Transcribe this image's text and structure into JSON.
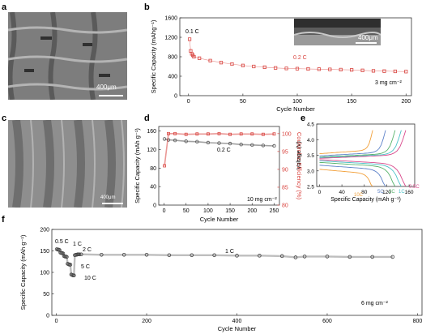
{
  "panel_letters": [
    "a",
    "b",
    "c",
    "d",
    "e",
    "f"
  ],
  "scale_bars": {
    "a": "400μm",
    "b_inset": "400μm",
    "c": "400μm"
  },
  "chart_data": [
    {
      "id": "b",
      "type": "scatter",
      "xlabel": "Cycle Number",
      "ylabel": "Specific Capacity (mAhg⁻¹)",
      "xlim": [
        -8,
        205
      ],
      "ylim": [
        0,
        1600
      ],
      "xticks": [
        0,
        50,
        100,
        150,
        200
      ],
      "yticks": [
        0,
        400,
        800,
        1200,
        1600
      ],
      "annotations": {
        "rate_start": "0.1 C",
        "rate_main": "0.2 C",
        "loading": "3 mg cm⁻²"
      },
      "series": [
        {
          "color": "#d9443f",
          "marker": "open-square",
          "x": [
            1,
            2,
            3,
            4,
            5,
            10,
            20,
            30,
            40,
            50,
            60,
            70,
            80,
            90,
            100,
            110,
            120,
            130,
            140,
            150,
            160,
            170,
            180,
            190,
            200
          ],
          "y": [
            1160,
            920,
            860,
            830,
            800,
            770,
            720,
            680,
            650,
            620,
            600,
            585,
            570,
            560,
            555,
            550,
            545,
            540,
            535,
            530,
            520,
            510,
            505,
            500,
            495
          ]
        }
      ]
    },
    {
      "id": "d",
      "type": "scatter",
      "xlabel": "Cycle Number",
      "ylabel": "Specific Capacity (mAh g⁻¹)",
      "ylabel_right": "Coulombic Efficiency (%)",
      "xlim": [
        -12,
        262
      ],
      "ylim": [
        0,
        170
      ],
      "ylim_right": [
        80,
        102
      ],
      "xticks": [
        0,
        50,
        100,
        150,
        200,
        250
      ],
      "yticks": [
        0,
        40,
        80,
        120,
        160
      ],
      "yticks_right": [
        80,
        85,
        90,
        95,
        100
      ],
      "annotations": {
        "rate": "0.2 C",
        "loading": "10 mg cm⁻²"
      },
      "series": [
        {
          "axis": "left",
          "color": "#555555",
          "marker": "open-circle",
          "x": [
            1,
            10,
            25,
            50,
            75,
            100,
            125,
            150,
            175,
            200,
            225,
            250
          ],
          "y": [
            143,
            141,
            140,
            138,
            137,
            135,
            134,
            133,
            131,
            130,
            129,
            128
          ]
        },
        {
          "axis": "right",
          "color": "#d9443f",
          "marker": "open-square",
          "x": [
            1,
            10,
            25,
            50,
            75,
            100,
            125,
            150,
            175,
            200,
            225,
            250
          ],
          "y": [
            91,
            100,
            100,
            99.8,
            99.9,
            99.9,
            100,
            99.8,
            99.9,
            99.9,
            99.8,
            99.9
          ]
        }
      ]
    },
    {
      "id": "e",
      "type": "line",
      "xlabel": "Specific Capacity (mAh g⁻¹)",
      "ylabel": "Voltage (V)",
      "xlim": [
        -5,
        170
      ],
      "ylim": [
        2.5,
        4.5
      ],
      "xticks": [
        0,
        40,
        80,
        120,
        160
      ],
      "yticks": [
        2.5,
        3.0,
        3.5,
        4.0,
        4.5
      ],
      "series": [
        {
          "name": "10C",
          "color": "#f2a03a",
          "cap": 95,
          "charge_v": 3.55,
          "discharge_v": 3.05
        },
        {
          "name": "5C",
          "color": "#5e83c9",
          "cap": 118,
          "charge_v": 3.48,
          "discharge_v": 3.18
        },
        {
          "name": "2C",
          "color": "#57b36b",
          "cap": 135,
          "charge_v": 3.44,
          "discharge_v": 3.27
        },
        {
          "name": "1C",
          "color": "#4cc2c8",
          "cap": 146,
          "charge_v": 3.42,
          "discharge_v": 3.32
        },
        {
          "name": "0.5C",
          "color": "#d94a8c",
          "cap": 154,
          "charge_v": 3.4,
          "discharge_v": 3.36
        }
      ]
    },
    {
      "id": "f",
      "type": "scatter",
      "xlabel": "Cycle Number",
      "ylabel": "Specific Capacity (mAh g⁻¹)",
      "xlim": [
        -10,
        810
      ],
      "ylim": [
        0,
        200
      ],
      "xticks": [
        0,
        200,
        400,
        600,
        800
      ],
      "yticks": [
        0,
        50,
        100,
        150,
        200
      ],
      "annotations": {
        "r05": "0.5 C",
        "r1a": "1 C",
        "r2": "2 C",
        "r5": "5 C",
        "r10": "10 C",
        "r1b": "1 C",
        "loading": "6 mg cm⁻²"
      },
      "series": [
        {
          "color": "#444444",
          "marker": "open-circle",
          "x": [
            1,
            3,
            5,
            7,
            9,
            11,
            13,
            15,
            17,
            19,
            21,
            23,
            25,
            27,
            29,
            31,
            33,
            35,
            37,
            39,
            41,
            43,
            45,
            47,
            49,
            51,
            55,
            100,
            150,
            200,
            250,
            300,
            350,
            400,
            450,
            500,
            530,
            550,
            600,
            650,
            700,
            745
          ],
          "y": [
            154,
            153,
            153,
            152,
            146,
            145,
            145,
            144,
            138,
            137,
            137,
            136,
            120,
            119,
            118,
            118,
            95,
            94,
            93,
            93,
            140,
            141,
            141,
            142,
            142,
            142,
            142,
            141,
            141,
            141,
            140,
            140,
            140,
            139,
            139,
            138,
            135,
            137,
            137,
            136,
            136,
            136
          ]
        }
      ]
    }
  ]
}
